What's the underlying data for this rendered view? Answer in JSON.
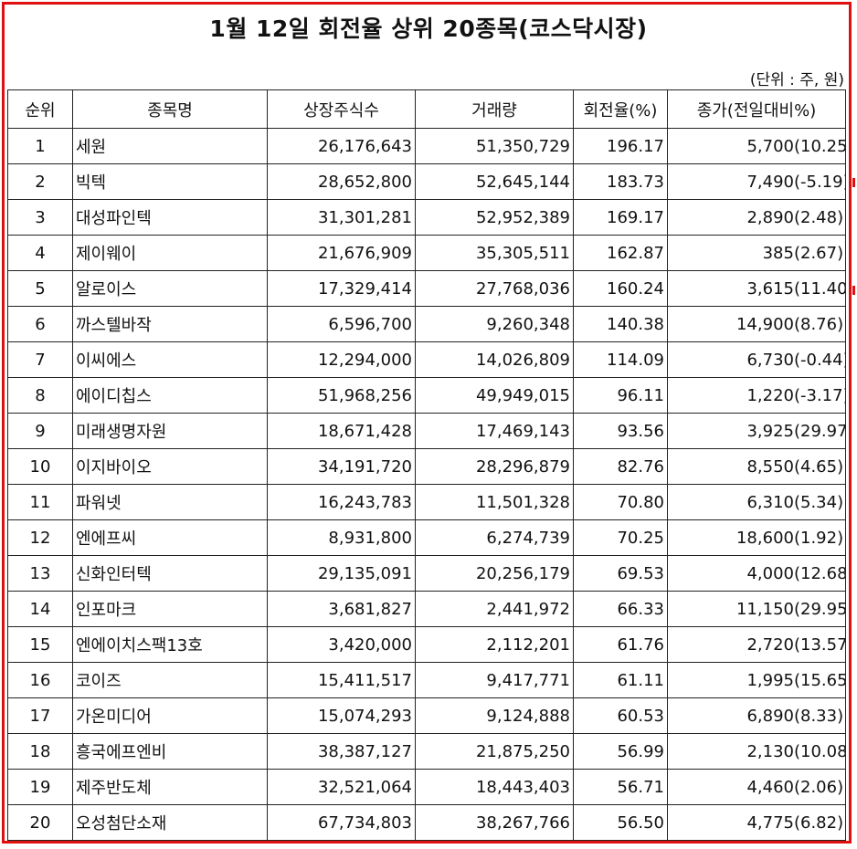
{
  "title": "1월 12일 회전율 상위 20종목(코스닥시장)",
  "unit_note": "(단위 : 주, 원)",
  "headers": {
    "rank": "순위",
    "name": "종목명",
    "listed_shares": "상장주식수",
    "volume": "거래량",
    "turnover": "회전율(%)",
    "close": "종가(전일대비%)"
  },
  "rows": [
    {
      "rank": "1",
      "name": "세원",
      "listed_shares": "26,176,643",
      "volume": "51,350,729",
      "turnover": "196.17",
      "close": "5,700(",
      "change": "10.25)"
    },
    {
      "rank": "2",
      "name": "빅텍",
      "listed_shares": "28,652,800",
      "volume": "52,645,144",
      "turnover": "183.73",
      "close": "7,490(",
      "change": "-5.19)"
    },
    {
      "rank": "3",
      "name": "대성파인텍",
      "listed_shares": "31,301,281",
      "volume": "52,952,389",
      "turnover": "169.17",
      "close": "2,890(",
      "change": "2.48)"
    },
    {
      "rank": "4",
      "name": "제이웨이",
      "listed_shares": "21,676,909",
      "volume": "35,305,511",
      "turnover": "162.87",
      "close": "385(",
      "change": "2.67)"
    },
    {
      "rank": "5",
      "name": "알로이스",
      "listed_shares": "17,329,414",
      "volume": "27,768,036",
      "turnover": "160.24",
      "close": "3,615(",
      "change": "11.40)"
    },
    {
      "rank": "6",
      "name": "까스텔바작",
      "listed_shares": "6,596,700",
      "volume": "9,260,348",
      "turnover": "140.38",
      "close": "14,900(",
      "change": "8.76)"
    },
    {
      "rank": "7",
      "name": "이씨에스",
      "listed_shares": "12,294,000",
      "volume": "14,026,809",
      "turnover": "114.09",
      "close": "6,730(",
      "change": "-0.44)"
    },
    {
      "rank": "8",
      "name": "에이디칩스",
      "listed_shares": "51,968,256",
      "volume": "49,949,015",
      "turnover": "96.11",
      "close": "1,220(",
      "change": "-3.17)"
    },
    {
      "rank": "9",
      "name": "미래생명자원",
      "listed_shares": "18,671,428",
      "volume": "17,469,143",
      "turnover": "93.56",
      "close": "3,925(",
      "change": "29.97)"
    },
    {
      "rank": "10",
      "name": "이지바이오",
      "listed_shares": "34,191,720",
      "volume": "28,296,879",
      "turnover": "82.76",
      "close": "8,550(",
      "change": "4.65)"
    },
    {
      "rank": "11",
      "name": "파워넷",
      "listed_shares": "16,243,783",
      "volume": "11,501,328",
      "turnover": "70.80",
      "close": "6,310(",
      "change": "5.34)"
    },
    {
      "rank": "12",
      "name": "엔에프씨",
      "listed_shares": "8,931,800",
      "volume": "6,274,739",
      "turnover": "70.25",
      "close": "18,600(",
      "change": "1.92)"
    },
    {
      "rank": "13",
      "name": "신화인터텍",
      "listed_shares": "29,135,091",
      "volume": "20,256,179",
      "turnover": "69.53",
      "close": "4,000(",
      "change": "12.68)"
    },
    {
      "rank": "14",
      "name": "인포마크",
      "listed_shares": "3,681,827",
      "volume": "2,441,972",
      "turnover": "66.33",
      "close": "11,150(",
      "change": "29.95)"
    },
    {
      "rank": "15",
      "name": "엔에이치스팩13호",
      "listed_shares": "3,420,000",
      "volume": "2,112,201",
      "turnover": "61.76",
      "close": "2,720(",
      "change": "13.57)"
    },
    {
      "rank": "16",
      "name": "코이즈",
      "listed_shares": "15,411,517",
      "volume": "9,417,771",
      "turnover": "61.11",
      "close": "1,995(",
      "change": "15.65)"
    },
    {
      "rank": "17",
      "name": "가온미디어",
      "listed_shares": "15,074,293",
      "volume": "9,124,888",
      "turnover": "60.53",
      "close": "6,890(",
      "change": "8.33)"
    },
    {
      "rank": "18",
      "name": "흥국에프엔비",
      "listed_shares": "38,387,127",
      "volume": "21,875,250",
      "turnover": "56.99",
      "close": "2,130(",
      "change": "10.08)"
    },
    {
      "rank": "19",
      "name": "제주반도체",
      "listed_shares": "32,521,064",
      "volume": "18,443,403",
      "turnover": "56.71",
      "close": "4,460(",
      "change": "2.06)"
    },
    {
      "rank": "20",
      "name": "오성첨단소재",
      "listed_shares": "67,734,803",
      "volume": "38,267,766",
      "turnover": "56.50",
      "close": "4,775(",
      "change": "6.82)"
    }
  ],
  "colors": {
    "frame": "#e01010"
  }
}
